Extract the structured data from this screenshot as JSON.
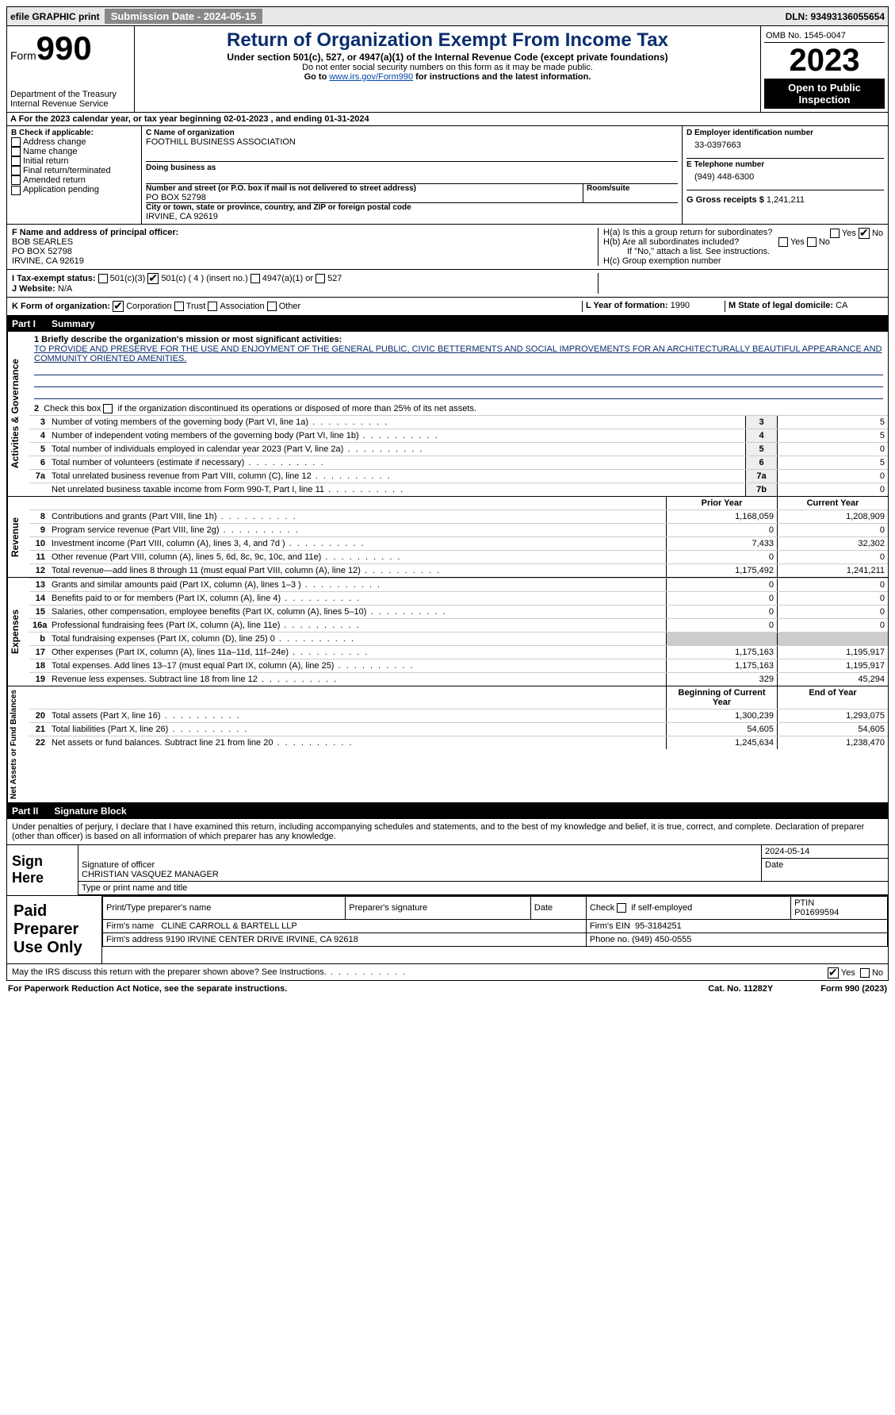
{
  "topbar": {
    "efile": "efile GRAPHIC print",
    "submission": "Submission Date - 2024-05-15",
    "dln": "DLN: 93493136055654"
  },
  "header": {
    "form_word": "Form",
    "form_num": "990",
    "dept": "Department of the Treasury\nInternal Revenue Service",
    "title": "Return of Organization Exempt From Income Tax",
    "sub": "Under section 501(c), 527, or 4947(a)(1) of the Internal Revenue Code (except private foundations)",
    "warn": "Do not enter social security numbers on this form as it may be made public.",
    "goto": "Go to www.irs.gov/Form990 for instructions and the latest information.",
    "omb": "OMB No. 1545-0047",
    "year": "2023",
    "open": "Open to Public Inspection"
  },
  "lineA": "A For the 2023 calendar year, or tax year beginning 02-01-2023   , and ending 01-31-2024",
  "boxB": {
    "title": "B Check if applicable:",
    "opts": [
      "Address change",
      "Name change",
      "Initial return",
      "Final return/terminated",
      "Amended return",
      "Application pending"
    ]
  },
  "boxC": {
    "lblName": "C Name of organization",
    "name": "FOOTHILL BUSINESS ASSOCIATION",
    "dba": "Doing business as",
    "lblAddr": "Number and street (or P.O. box if mail is not delivered to street address)",
    "addr": "PO BOX 52798",
    "room": "Room/suite",
    "lblCity": "City or town, state or province, country, and ZIP or foreign postal code",
    "city": "IRVINE, CA  92619"
  },
  "boxD": {
    "lbl": "D Employer identification number",
    "val": "33-0397663"
  },
  "boxE": {
    "lbl": "E Telephone number",
    "val": "(949) 448-6300"
  },
  "boxG": {
    "lbl": "G Gross receipts $",
    "val": "1,241,211"
  },
  "boxF": {
    "lbl": "F Name and address of principal officer:",
    "name": "BOB SEARLES",
    "addr1": "PO BOX 52798",
    "addr2": "IRVINE, CA  92619"
  },
  "boxH": {
    "a": "H(a)  Is this a group return for subordinates?",
    "b": "H(b)  Are all subordinates included?",
    "bnote": "If \"No,\" attach a list. See instructions.",
    "c": "H(c)  Group exemption number"
  },
  "taxstatus": {
    "lbl": "I     Tax-exempt status:",
    "o1": "501(c)(3)",
    "o2": "501(c) ( 4 ) (insert no.)",
    "o3": "4947(a)(1) or",
    "o4": "527"
  },
  "website": {
    "lbl": "J    Website:",
    "val": "N/A"
  },
  "formorg": {
    "lbl": "K Form of organization:",
    "o1": "Corporation",
    "o2": "Trust",
    "o3": "Association",
    "o4": "Other"
  },
  "boxL": {
    "lbl": "L Year of formation:",
    "val": "1990"
  },
  "boxM": {
    "lbl": "M State of legal domicile:",
    "val": "CA"
  },
  "part1": {
    "num": "Part I",
    "title": "Summary"
  },
  "summary": {
    "q1lbl": "1  Briefly describe the organization's mission or most significant activities:",
    "q1val": "TO PROVIDE AND PRESERVE FOR THE USE AND ENJOYMENT OF THE GENERAL PUBLIC, CIVIC BETTERMENTS AND SOCIAL IMPROVEMENTS FOR AN ARCHITECTURALLY BEAUTIFUL APPEARANCE AND COMMUNITY ORIENTED AMENITIES.",
    "q2": "2   Check this box      if the organization discontinued its operations or disposed of more than 25% of its net assets.",
    "lines3_7": [
      {
        "n": "3",
        "t": "Number of voting members of the governing body (Part VI, line 1a)",
        "k": "3",
        "v": "5"
      },
      {
        "n": "4",
        "t": "Number of independent voting members of the governing body (Part VI, line 1b)",
        "k": "4",
        "v": "5"
      },
      {
        "n": "5",
        "t": "Total number of individuals employed in calendar year 2023 (Part V, line 2a)",
        "k": "5",
        "v": "0"
      },
      {
        "n": "6",
        "t": "Total number of volunteers (estimate if necessary)",
        "k": "6",
        "v": "5"
      },
      {
        "n": "7a",
        "t": "Total unrelated business revenue from Part VIII, column (C), line 12",
        "k": "7a",
        "v": "0"
      },
      {
        "n": "",
        "t": "Net unrelated business taxable income from Form 990-T, Part I, line 11",
        "k": "7b",
        "v": "0"
      }
    ],
    "col_prior": "Prior Year",
    "col_current": "Current Year",
    "col_begin": "Beginning of Current Year",
    "col_end": "End of Year"
  },
  "revenue": [
    {
      "n": "8",
      "t": "Contributions and grants (Part VIII, line 1h)",
      "p": "1,168,059",
      "c": "1,208,909"
    },
    {
      "n": "9",
      "t": "Program service revenue (Part VIII, line 2g)",
      "p": "0",
      "c": "0"
    },
    {
      "n": "10",
      "t": "Investment income (Part VIII, column (A), lines 3, 4, and 7d )",
      "p": "7,433",
      "c": "32,302"
    },
    {
      "n": "11",
      "t": "Other revenue (Part VIII, column (A), lines 5, 6d, 8c, 9c, 10c, and 11e)",
      "p": "0",
      "c": "0"
    },
    {
      "n": "12",
      "t": "Total revenue—add lines 8 through 11 (must equal Part VIII, column (A), line 12)",
      "p": "1,175,492",
      "c": "1,241,211"
    }
  ],
  "expenses": [
    {
      "n": "13",
      "t": "Grants and similar amounts paid (Part IX, column (A), lines 1–3 )",
      "p": "0",
      "c": "0"
    },
    {
      "n": "14",
      "t": "Benefits paid to or for members (Part IX, column (A), line 4)",
      "p": "0",
      "c": "0"
    },
    {
      "n": "15",
      "t": "Salaries, other compensation, employee benefits (Part IX, column (A), lines 5–10)",
      "p": "0",
      "c": "0"
    },
    {
      "n": "16a",
      "t": "Professional fundraising fees (Part IX, column (A), line 11e)",
      "p": "0",
      "c": "0"
    },
    {
      "n": "b",
      "t": "Total fundraising expenses (Part IX, column (D), line 25) 0",
      "p": "",
      "c": "",
      "gray": true
    },
    {
      "n": "17",
      "t": "Other expenses (Part IX, column (A), lines 11a–11d, 11f–24e)",
      "p": "1,175,163",
      "c": "1,195,917"
    },
    {
      "n": "18",
      "t": "Total expenses. Add lines 13–17 (must equal Part IX, column (A), line 25)",
      "p": "1,175,163",
      "c": "1,195,917"
    },
    {
      "n": "19",
      "t": "Revenue less expenses. Subtract line 18 from line 12",
      "p": "329",
      "c": "45,294"
    }
  ],
  "netassets": [
    {
      "n": "20",
      "t": "Total assets (Part X, line 16)",
      "p": "1,300,239",
      "c": "1,293,075"
    },
    {
      "n": "21",
      "t": "Total liabilities (Part X, line 26)",
      "p": "54,605",
      "c": "54,605"
    },
    {
      "n": "22",
      "t": "Net assets or fund balances. Subtract line 21 from line 20",
      "p": "1,245,634",
      "c": "1,238,470"
    }
  ],
  "vlabels": {
    "gov": "Activities & Governance",
    "rev": "Revenue",
    "exp": "Expenses",
    "net": "Net Assets or Fund Balances"
  },
  "part2": {
    "num": "Part II",
    "title": "Signature Block"
  },
  "sigdecl": "Under penalties of perjury, I declare that I have examined this return, including accompanying schedules and statements, and to the best of my knowledge and belief, it is true, correct, and complete. Declaration of preparer (other than officer) is based on all information of which preparer has any knowledge.",
  "sign": {
    "here": "Sign Here",
    "sigoff": "Signature of officer",
    "name": "CHRISTIAN VASQUEZ MANAGER",
    "typetitle": "Type or print name and title",
    "date": "2024-05-14",
    "datelbl": "Date"
  },
  "paid": {
    "title": "Paid Preparer Use Only",
    "h1": "Print/Type preparer's name",
    "h2": "Preparer's signature",
    "h3": "Date",
    "h4": "Check        if self-employed",
    "h5": "PTIN",
    "ptin": "P01699594",
    "firmlbl": "Firm's name",
    "firm": "CLINE CARROLL & BARTELL LLP",
    "einlbl": "Firm's EIN",
    "ein": "95-3184251",
    "addrlbl": "Firm's address",
    "addr": "9190 IRVINE CENTER DRIVE\nIRVINE, CA  92618",
    "phonelbl": "Phone no.",
    "phone": "(949) 450-0555"
  },
  "discuss": "May the IRS discuss this return with the preparer shown above? See Instructions.",
  "footer": {
    "l": "For Paperwork Reduction Act Notice, see the separate instructions.",
    "m": "Cat. No. 11282Y",
    "r": "Form 990 (2023)"
  },
  "yn": {
    "yes": "Yes",
    "no": "No"
  }
}
